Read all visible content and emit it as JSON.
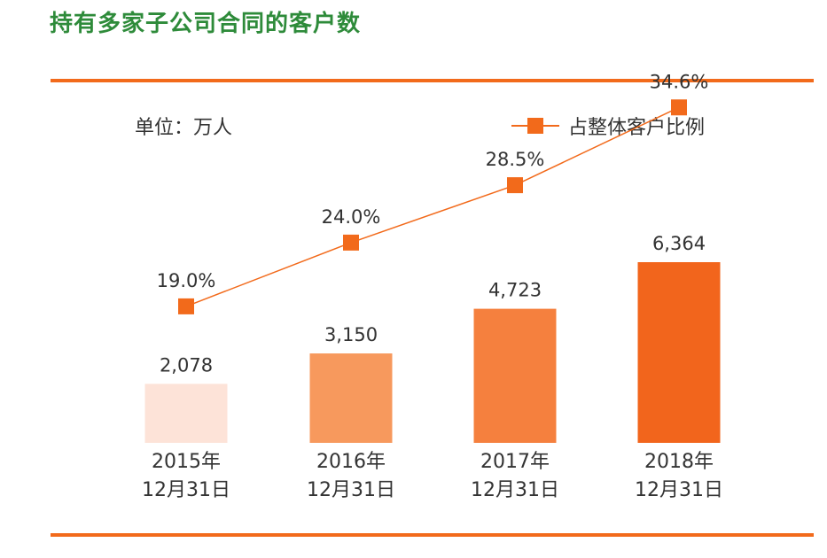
{
  "title": "持有多家子公司合同的客户数",
  "unit_label": "单位：万人",
  "legend_label": "占整体客户比例",
  "colors": {
    "title": "#2e8b3a",
    "accent": "#f26a1b",
    "bars": [
      "#fde3d8",
      "#f7995d",
      "#f5803e",
      "#f2651c"
    ]
  },
  "chart_data": {
    "type": "bar",
    "title": "持有多家子公司合同的客户数",
    "categories": [
      [
        "2015年",
        "12月31日"
      ],
      [
        "2016年",
        "12月31日"
      ],
      [
        "2017年",
        "12月31日"
      ],
      [
        "2018年",
        "12月31日"
      ]
    ],
    "series": [
      {
        "name": "客户数",
        "unit": "万人",
        "type": "bar",
        "values": [
          2078,
          3150,
          4723,
          6364
        ],
        "labels": [
          "2,078",
          "3,150",
          "4,723",
          "6,364"
        ]
      },
      {
        "name": "占整体客户比例",
        "type": "line",
        "values": [
          19.0,
          24.0,
          28.5,
          34.6
        ],
        "labels": [
          "19.0%",
          "24.0%",
          "28.5%",
          "34.6%"
        ]
      }
    ],
    "ylabel": "单位：万人",
    "legend": "top-right"
  }
}
